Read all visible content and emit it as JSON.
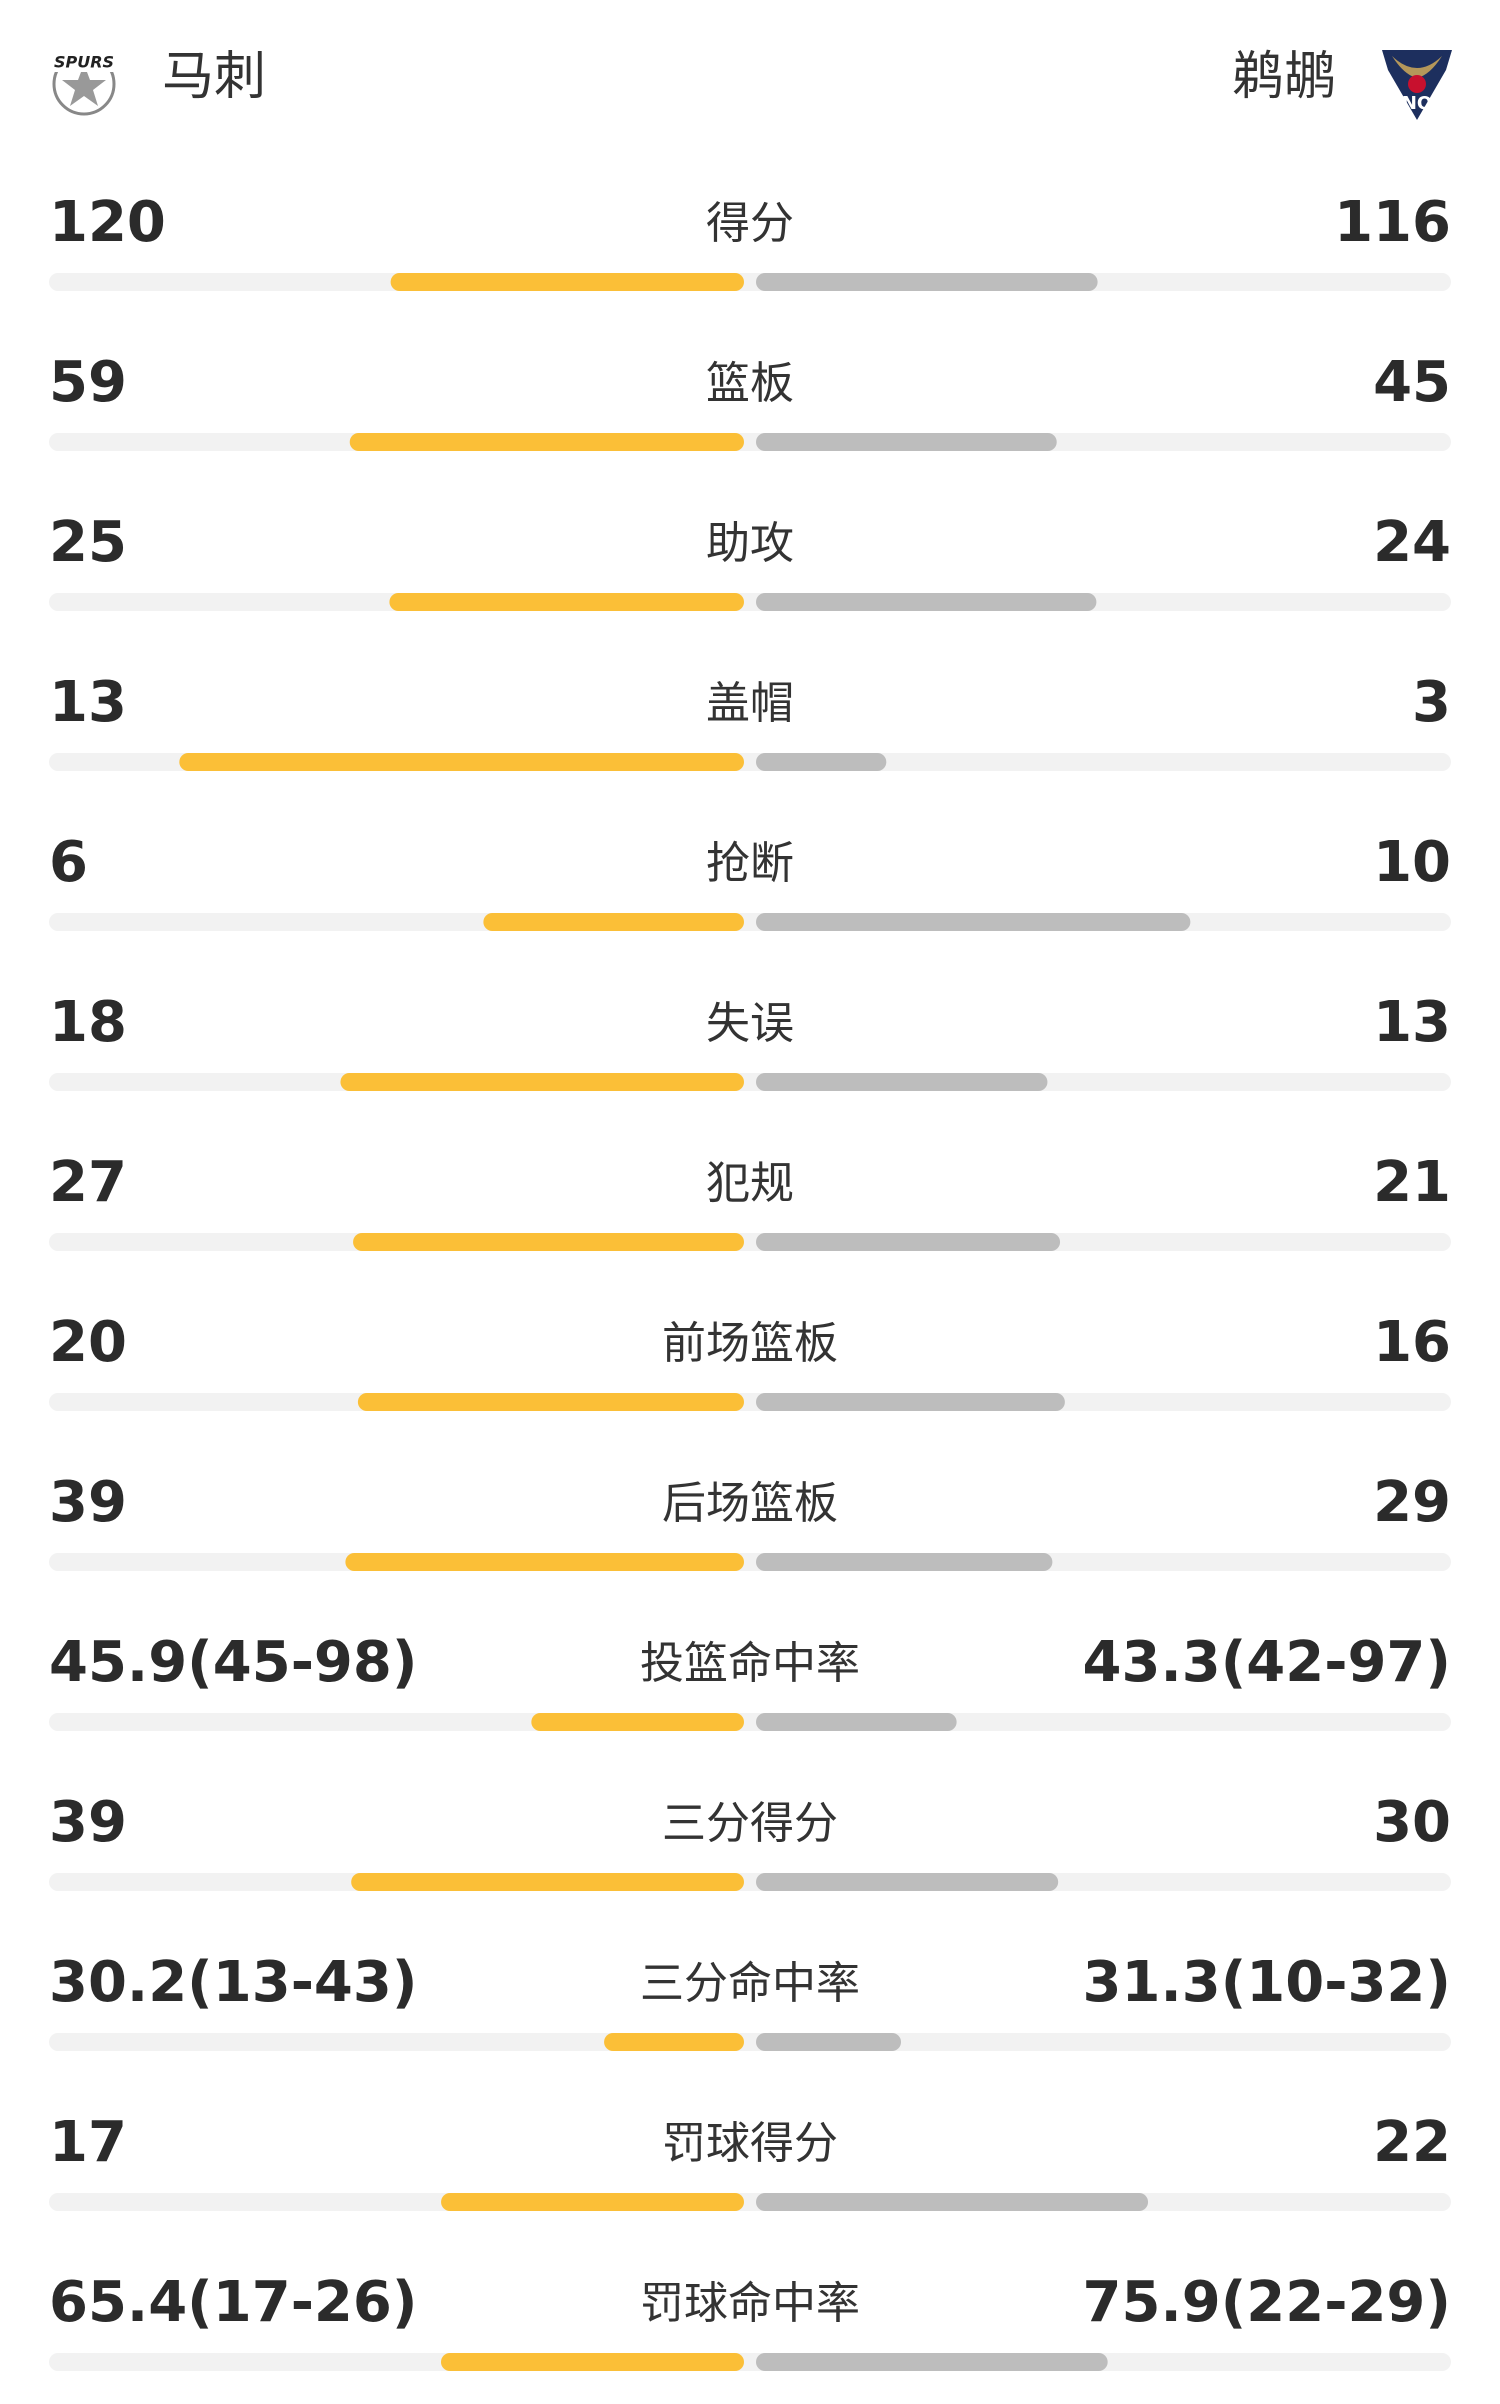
{
  "header": {
    "home_team": "马刺",
    "away_team": "鹈鹕",
    "home_logo_text": "SPURS",
    "away_logo_text": "NO"
  },
  "stats": {
    "home_color": "#fbbf37",
    "away_color": "#bdbdbd",
    "track_color": "#f2f2f2",
    "rows": [
      {
        "label": "得分",
        "home": 120,
        "away": 116
      },
      {
        "label": "篮板",
        "home": 59,
        "away": 45
      },
      {
        "label": "助攻",
        "home": 25,
        "away": 24
      },
      {
        "label": "盖帽",
        "home": 13,
        "away": 3
      },
      {
        "label": "抢断",
        "home": 6,
        "away": 10
      },
      {
        "label": "失误",
        "home": 18,
        "away": 13
      },
      {
        "label": "犯规",
        "home": 27,
        "away": 21
      },
      {
        "label": "前场篮板",
        "home": 20,
        "away": 16
      },
      {
        "label": "后场篮板",
        "home": 39,
        "away": 29
      },
      {
        "label": "投篮命中率",
        "home": 45.9,
        "away": 43.3,
        "home_label": "45.9(45-98)",
        "away_label": "43.3(42-97)"
      },
      {
        "label": "三分得分",
        "home": 39,
        "away": 30
      },
      {
        "label": "三分命中率",
        "home": 30.2,
        "away": 31.3,
        "home_label": "30.2(13-43)",
        "away_label": "31.3(10-32)"
      },
      {
        "label": "罚球得分",
        "home": 17,
        "away": 22
      },
      {
        "label": "罚球命中率",
        "home": 65.4,
        "away": 75.9,
        "home_label": "65.4(17-26)",
        "away_label": "75.9(22-29)"
      }
    ]
  }
}
